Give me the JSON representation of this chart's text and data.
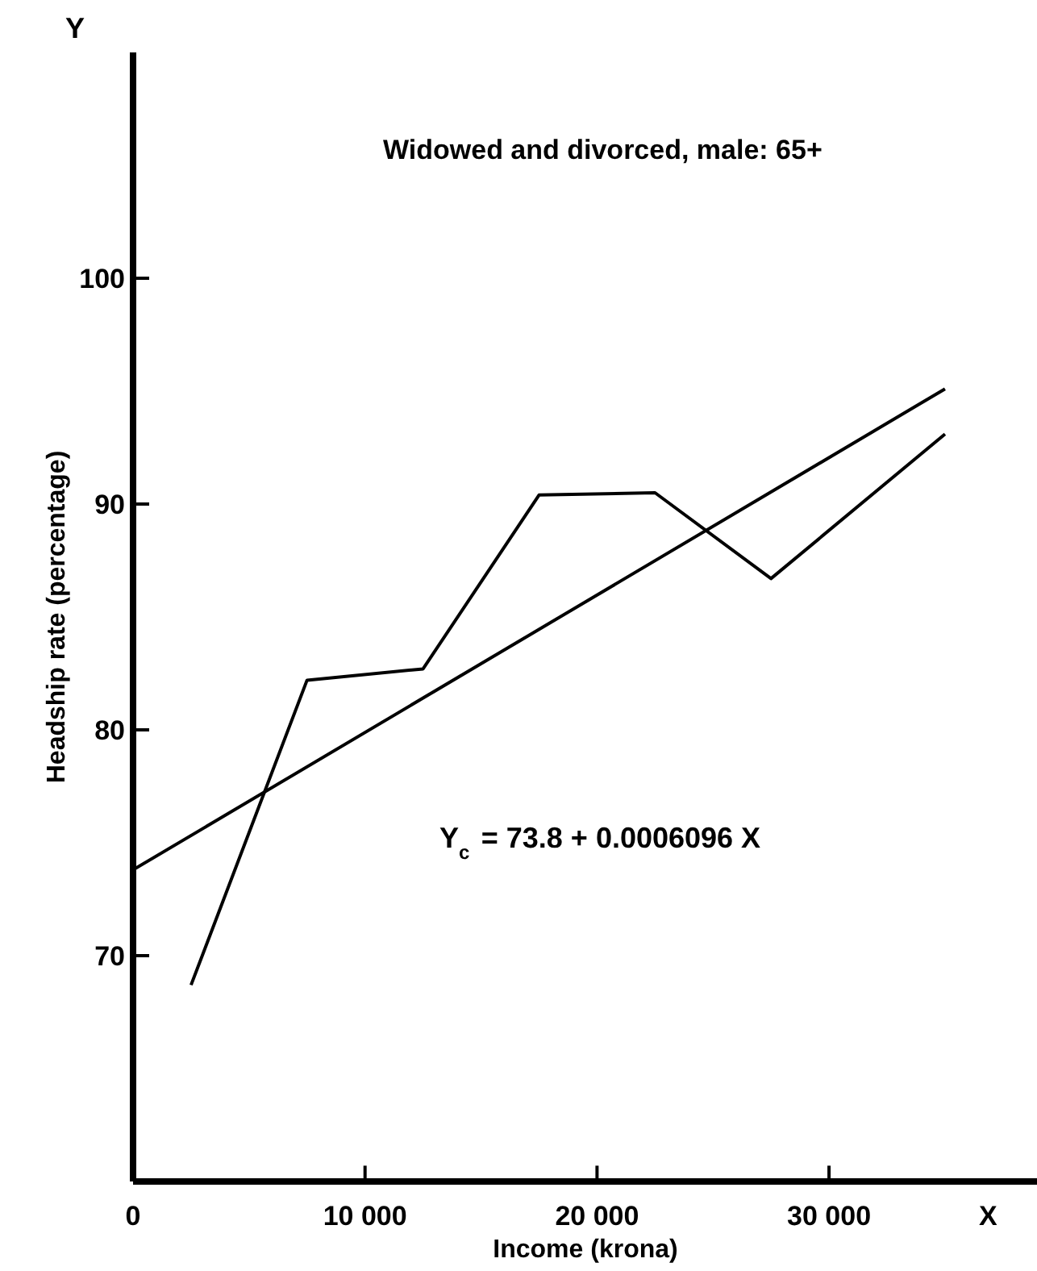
{
  "chart_data": {
    "type": "line",
    "title": "Widowed and divorced, male: 65+",
    "xlabel": "Income (krona)",
    "ylabel": "Headship rate (percentage)",
    "x": [
      2500,
      7500,
      12500,
      17500,
      22500,
      27500,
      35000
    ],
    "series": [
      {
        "color": "#000000",
        "values": [
          68.7,
          82.2,
          82.7,
          90.4,
          90.5,
          86.7,
          93.1
        ]
      },
      {
        "type": "line",
        "color": "#000000",
        "x": [
          0,
          35000
        ],
        "values": [
          73.8,
          95.1
        ]
      }
    ],
    "xlim": [
      0,
      39000
    ],
    "ylim": [
      60,
      110
    ],
    "xticks": [
      0,
      {
        "value": 10000,
        "label": "10 000"
      },
      {
        "value": 20000,
        "label": "20 000"
      },
      {
        "value": 30000,
        "label": "30 000"
      }
    ],
    "yticks": [
      70,
      80,
      90,
      100
    ],
    "grid": false,
    "marker": "none",
    "line_style": "solid",
    "annotations": [
      "Y$_{c}$ = 73.8 + 0.0006096 X",
      "Y",
      "X"
    ]
  }
}
